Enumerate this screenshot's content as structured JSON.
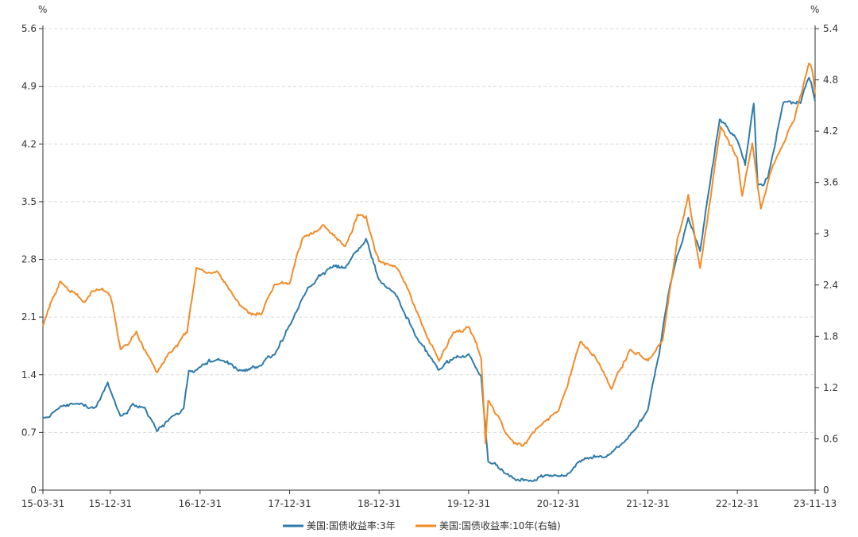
{
  "chart_data": {
    "type": "line",
    "left_axis_unit": "%",
    "right_axis_unit": "%",
    "grid": true,
    "legend_position": "bottom-center",
    "x_tick_labels": [
      "15-03-31",
      "15-12-31",
      "16-12-31",
      "17-12-31",
      "18-12-31",
      "19-12-31",
      "20-12-31",
      "21-12-31",
      "22-12-31",
      "23-11-13"
    ],
    "x_tick_dates": [
      "2015-03-31",
      "2015-12-31",
      "2016-12-31",
      "2017-12-31",
      "2018-12-31",
      "2019-12-31",
      "2020-12-31",
      "2021-12-31",
      "2022-12-31",
      "2023-11-13"
    ],
    "y_left": {
      "min": 0,
      "max": 5.6,
      "ticks": [
        0,
        0.7,
        1.4,
        2.1,
        2.8,
        3.5,
        4.2,
        4.9,
        5.6
      ],
      "tick_labels": [
        "0",
        "0.7",
        "1.4",
        "2.1",
        "2.8",
        "3.5",
        "4.2",
        "4.9",
        "5.6"
      ]
    },
    "y_right": {
      "min": 0,
      "max": 5.4,
      "ticks": [
        0,
        0.6,
        1.2,
        1.8,
        2.4,
        3.0,
        3.6,
        4.2,
        4.8,
        5.4
      ],
      "tick_labels": [
        "0",
        "0.6",
        "1.2",
        "1.8",
        "2.4",
        "3",
        "3.6",
        "4.2",
        "4.8",
        "5.4"
      ]
    },
    "series": [
      {
        "name": "美国:国债收益率:3年",
        "axis": "left",
        "color": "#2e7bab",
        "points": [
          [
            "2015-03-31",
            0.88
          ],
          [
            "2015-06-15",
            1.02
          ],
          [
            "2015-09-01",
            1.05
          ],
          [
            "2015-11-01",
            1.0
          ],
          [
            "2015-12-20",
            1.3
          ],
          [
            "2016-02-10",
            0.9
          ],
          [
            "2016-04-01",
            1.05
          ],
          [
            "2016-05-20",
            1.0
          ],
          [
            "2016-07-08",
            0.72
          ],
          [
            "2016-09-15",
            0.9
          ],
          [
            "2016-10-25",
            1.0
          ],
          [
            "2016-11-15",
            1.45
          ],
          [
            "2016-12-31",
            1.5
          ],
          [
            "2017-03-15",
            1.6
          ],
          [
            "2017-06-15",
            1.45
          ],
          [
            "2017-08-30",
            1.5
          ],
          [
            "2017-11-01",
            1.65
          ],
          [
            "2017-12-31",
            2.0
          ],
          [
            "2018-03-15",
            2.45
          ],
          [
            "2018-06-15",
            2.7
          ],
          [
            "2018-08-15",
            2.7
          ],
          [
            "2018-10-15",
            2.95
          ],
          [
            "2018-11-08",
            3.05
          ],
          [
            "2018-12-31",
            2.55
          ],
          [
            "2019-03-15",
            2.35
          ],
          [
            "2019-06-01",
            1.85
          ],
          [
            "2019-09-01",
            1.45
          ],
          [
            "2019-11-01",
            1.6
          ],
          [
            "2019-12-31",
            1.65
          ],
          [
            "2020-02-20",
            1.38
          ],
          [
            "2020-03-20",
            0.35
          ],
          [
            "2020-06-01",
            0.2
          ],
          [
            "2020-08-15",
            0.12
          ],
          [
            "2020-12-31",
            0.17
          ],
          [
            "2021-02-20",
            0.22
          ],
          [
            "2021-04-01",
            0.35
          ],
          [
            "2021-07-15",
            0.4
          ],
          [
            "2021-10-01",
            0.6
          ],
          [
            "2021-12-31",
            0.97
          ],
          [
            "2022-02-15",
            1.65
          ],
          [
            "2022-04-01",
            2.5
          ],
          [
            "2022-06-14",
            3.3
          ],
          [
            "2022-08-01",
            2.9
          ],
          [
            "2022-10-20",
            4.5
          ],
          [
            "2022-12-31",
            4.25
          ],
          [
            "2023-02-01",
            3.95
          ],
          [
            "2023-03-08",
            4.7
          ],
          [
            "2023-03-24",
            3.7
          ],
          [
            "2023-05-05",
            3.8
          ],
          [
            "2023-07-07",
            4.7
          ],
          [
            "2023-09-15",
            4.7
          ],
          [
            "2023-10-19",
            5.0
          ],
          [
            "2023-11-13",
            4.72
          ]
        ]
      },
      {
        "name": "美国:国债收益率:10年(右轴)",
        "axis": "right",
        "color": "#f28c28",
        "points": [
          [
            "2015-03-31",
            1.93
          ],
          [
            "2015-06-10",
            2.45
          ],
          [
            "2015-09-15",
            2.2
          ],
          [
            "2015-11-05",
            2.35
          ],
          [
            "2015-12-31",
            2.27
          ],
          [
            "2016-02-11",
            1.65
          ],
          [
            "2016-04-15",
            1.85
          ],
          [
            "2016-07-08",
            1.37
          ],
          [
            "2016-09-15",
            1.65
          ],
          [
            "2016-11-08",
            1.85
          ],
          [
            "2016-12-16",
            2.6
          ],
          [
            "2017-03-15",
            2.55
          ],
          [
            "2017-06-15",
            2.15
          ],
          [
            "2017-09-07",
            2.05
          ],
          [
            "2017-10-30",
            2.4
          ],
          [
            "2017-12-31",
            2.41
          ],
          [
            "2018-02-21",
            2.95
          ],
          [
            "2018-05-17",
            3.1
          ],
          [
            "2018-08-15",
            2.85
          ],
          [
            "2018-10-05",
            3.23
          ],
          [
            "2018-11-08",
            3.2
          ],
          [
            "2018-12-31",
            2.68
          ],
          [
            "2019-03-15",
            2.6
          ],
          [
            "2019-06-01",
            2.1
          ],
          [
            "2019-09-01",
            1.5
          ],
          [
            "2019-11-01",
            1.85
          ],
          [
            "2019-12-31",
            1.92
          ],
          [
            "2020-02-20",
            1.55
          ],
          [
            "2020-03-09",
            0.55
          ],
          [
            "2020-03-20",
            1.05
          ],
          [
            "2020-06-01",
            0.65
          ],
          [
            "2020-08-04",
            0.52
          ],
          [
            "2020-10-15",
            0.75
          ],
          [
            "2020-12-31",
            0.92
          ],
          [
            "2021-03-31",
            1.74
          ],
          [
            "2021-06-01",
            1.55
          ],
          [
            "2021-08-04",
            1.18
          ],
          [
            "2021-10-20",
            1.65
          ],
          [
            "2021-12-31",
            1.52
          ],
          [
            "2022-03-01",
            1.75
          ],
          [
            "2022-05-01",
            2.95
          ],
          [
            "2022-06-14",
            3.45
          ],
          [
            "2022-08-01",
            2.6
          ],
          [
            "2022-10-24",
            4.25
          ],
          [
            "2022-12-31",
            3.88
          ],
          [
            "2023-01-20",
            3.45
          ],
          [
            "2023-03-02",
            4.05
          ],
          [
            "2023-04-06",
            3.3
          ],
          [
            "2023-05-26",
            3.8
          ],
          [
            "2023-07-07",
            4.05
          ],
          [
            "2023-08-21",
            4.35
          ],
          [
            "2023-10-19",
            4.99
          ],
          [
            "2023-11-01",
            4.9
          ],
          [
            "2023-11-13",
            4.63
          ]
        ]
      }
    ]
  }
}
